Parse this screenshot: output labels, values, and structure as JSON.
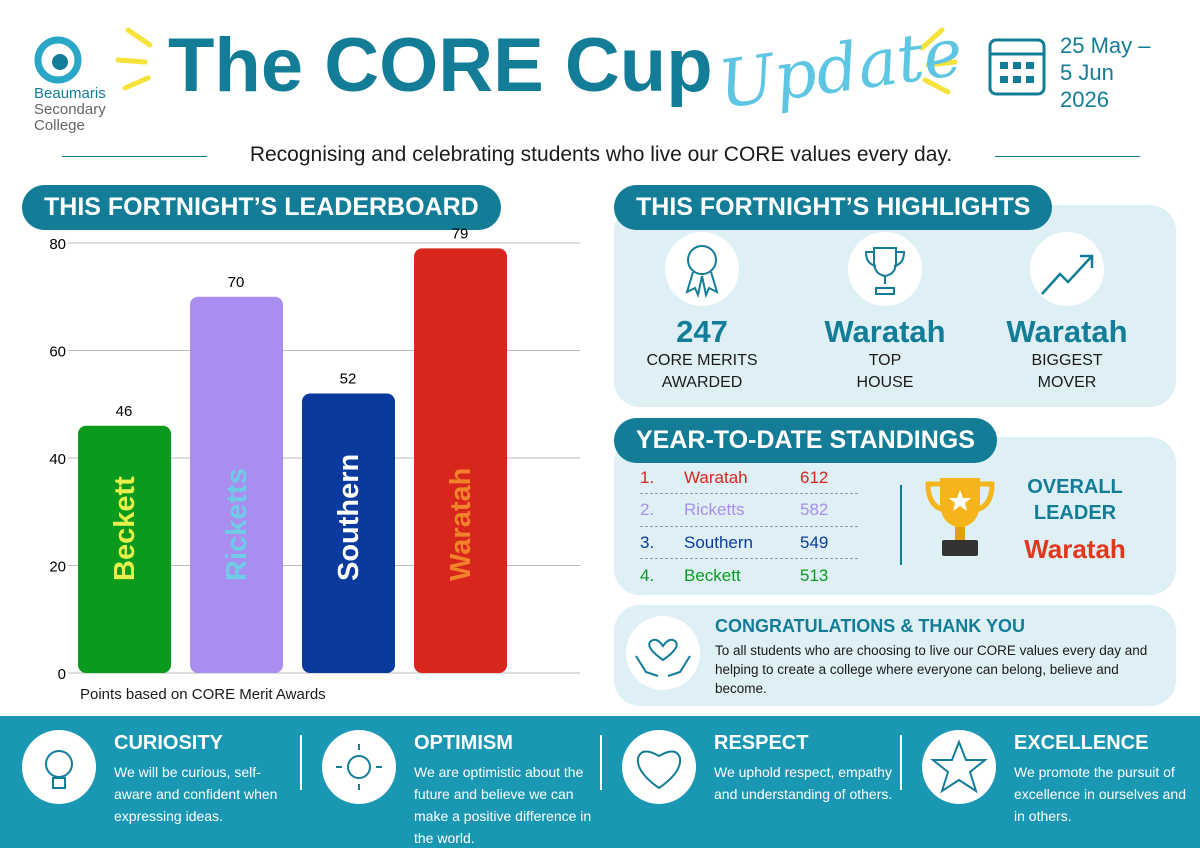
{
  "header": {
    "logo_lines": [
      "Beaumaris",
      "Secondary",
      "College"
    ],
    "title": "The CORE Cup",
    "title_accent": "Update",
    "date_lines": [
      "25 May –",
      "5 Jun",
      "2026"
    ],
    "tagline": "Recognising and celebrating students who live our CORE values every day."
  },
  "chart_data": {
    "type": "bar",
    "title": "THIS FORTNIGHT’S LEADERBOARD",
    "categories": [
      "Beckett",
      "Ricketts",
      "Southern",
      "Waratah"
    ],
    "values": [
      46,
      70,
      52,
      79
    ],
    "colors": [
      "#0a9b1e",
      "#a98ef0",
      "#0a3a9e",
      "#d9261c"
    ],
    "label_colors": [
      "#e6f04a",
      "#6fcbe6",
      "#ffffff",
      "#f2832a"
    ],
    "ylim": [
      0,
      80
    ],
    "yticks": [
      0,
      20,
      40,
      60,
      80
    ],
    "grid": true,
    "note": "Points based on CORE Merit Awards"
  },
  "highlights": {
    "title": "THIS FORTNIGHT’S  HIGHLIGHTS",
    "items": [
      {
        "value": 247,
        "label_lines": [
          "CORE MERITS",
          "AWARDED"
        ]
      },
      {
        "value": "Waratah",
        "label_lines": [
          "TOP",
          "HOUSE"
        ]
      },
      {
        "value": "Waratah",
        "label_lines": [
          "BIGGEST",
          "MOVER"
        ]
      }
    ]
  },
  "standings": {
    "title": "YEAR-TO-DATE STANDINGS",
    "rows": [
      {
        "rank": "1.",
        "house": "Waratah",
        "points": 612,
        "color": "#d9261c"
      },
      {
        "rank": "2.",
        "house": "Ricketts",
        "points": 582,
        "color": "#a98ef0"
      },
      {
        "rank": "3.",
        "house": "Southern",
        "points": 549,
        "color": "#0a3a9e"
      },
      {
        "rank": "4.",
        "house": "Beckett",
        "points": 513,
        "color": "#0a9b1e"
      }
    ],
    "leader_label_lines": [
      "OVERALL",
      "LEADER"
    ],
    "leader": "Waratah"
  },
  "congrats": {
    "title": "CONGRATULATIONS & THANK YOU",
    "text": "To all students who are choosing to live our CORE values every day and helping to create a college where everyone can belong, believe and become."
  },
  "values": [
    {
      "name": "CURIOSITY",
      "text": "We will be curious, self-aware and confident when expressing ideas."
    },
    {
      "name": "OPTIMISM",
      "text": "We are optimistic about the future and believe we can make a positive difference in the world."
    },
    {
      "name": "RESPECT",
      "text": "We uphold respect, empathy and understanding of others."
    },
    {
      "name": "EXCELLENCE",
      "text": "We promote the pursuit of excellence in ourselves and in others."
    }
  ]
}
